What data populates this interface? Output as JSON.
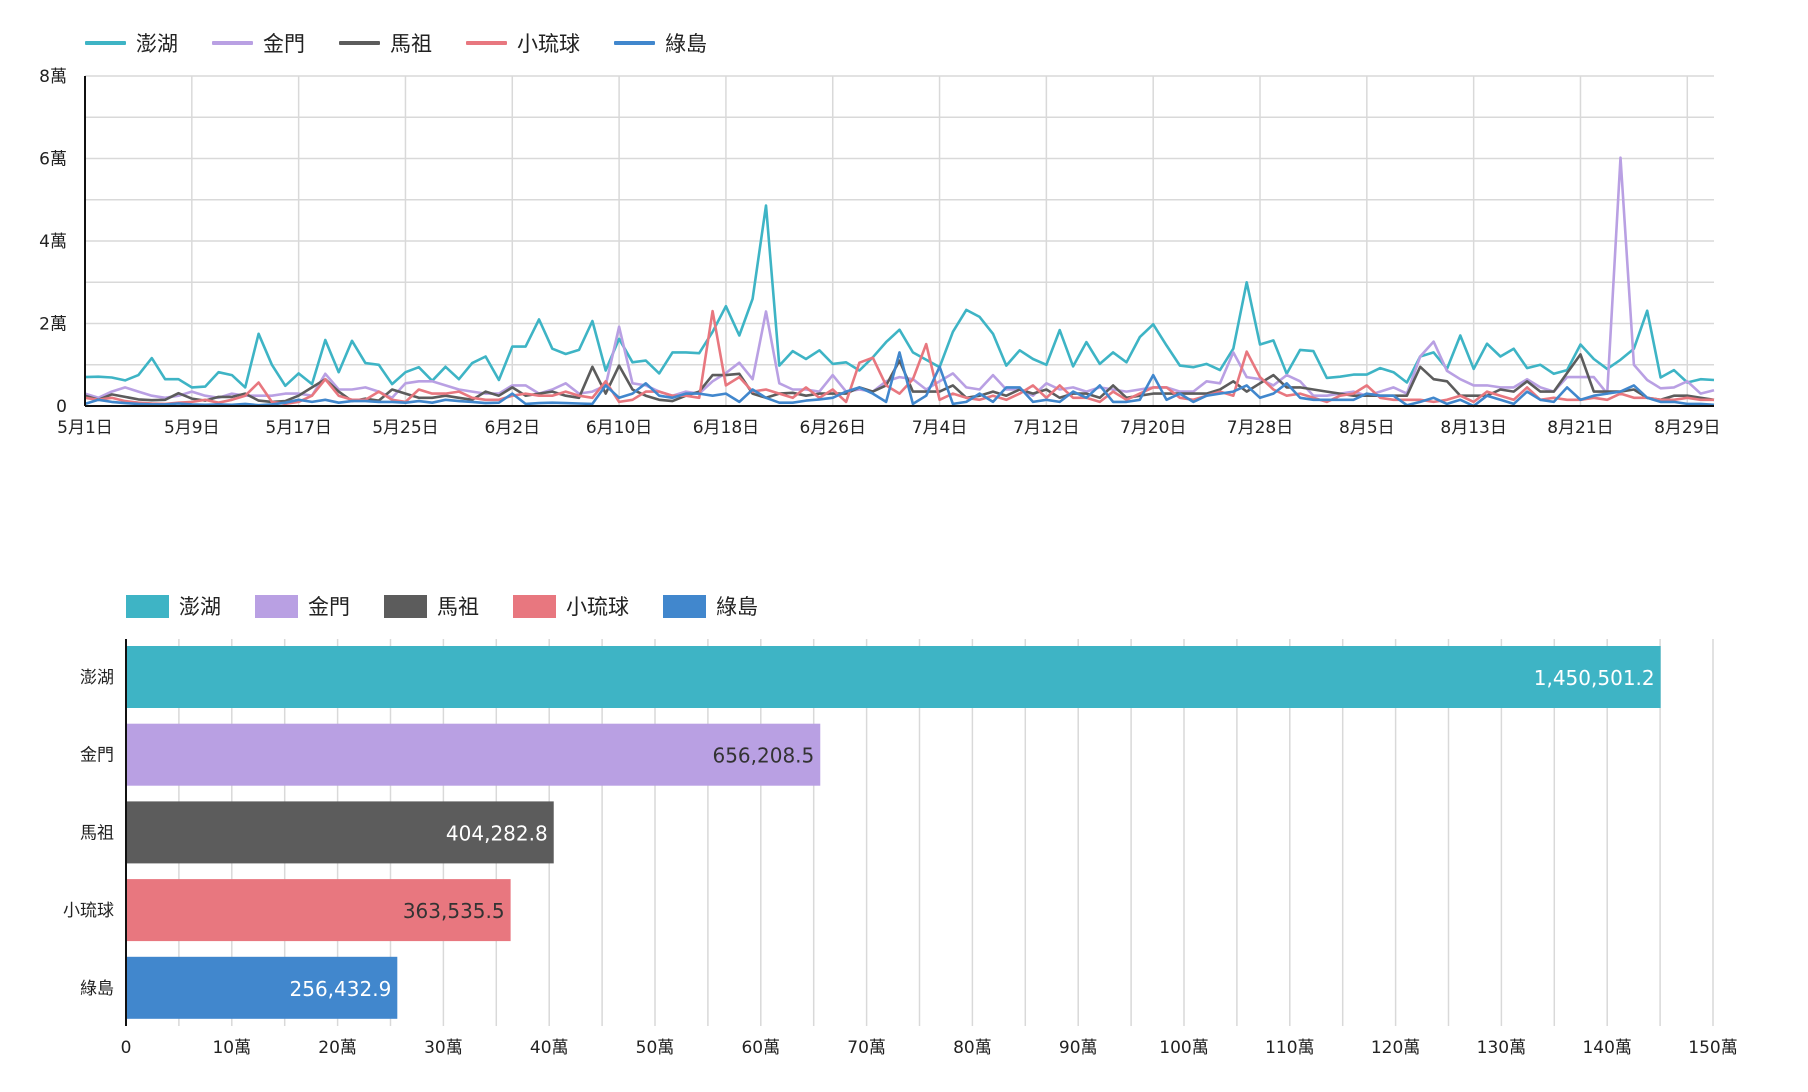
{
  "chart_data": [
    {
      "type": "line",
      "title": "",
      "x_start": "5月1日",
      "x_ticks": [
        "5月1日",
        "5月9日",
        "5月17日",
        "5月25日",
        "6月2日",
        "6月10日",
        "6月18日",
        "6月26日",
        "7月4日",
        "7月12日",
        "7月20日",
        "7月28日",
        "8月5日",
        "8月13日",
        "8月21日",
        "8月29日"
      ],
      "x_tick_every_days": 8,
      "num_days": 123,
      "y_ticks": [
        "0",
        "2萬",
        "4萬",
        "6萬",
        "8萬"
      ],
      "y_tick_values": [
        0,
        20000,
        40000,
        60000,
        80000
      ],
      "ylim": [
        0,
        80000
      ],
      "grid": true,
      "legend": "top-left",
      "series": [
        {
          "name": "澎湖",
          "color": "#3eb4c5",
          "values": [
            7000,
            7100,
            6900,
            6200,
            7500,
            11600,
            6500,
            6500,
            4500,
            4700,
            8200,
            7500,
            4500,
            17500,
            10000,
            4900,
            7900,
            5300,
            16000,
            8200,
            15800,
            10400,
            10000,
            5300,
            8200,
            9400,
            6100,
            9500,
            6500,
            10400,
            12000,
            6300,
            14400,
            14400,
            21000,
            13900,
            12600,
            13600,
            20600,
            8600,
            16300,
            10600,
            11000,
            7900,
            13000,
            13000,
            12800,
            18000,
            24200,
            17100,
            26000,
            48600,
            9800,
            13300,
            11400,
            13500,
            10200,
            10600,
            8600,
            11800,
            15500,
            18500,
            13000,
            11200,
            9400,
            18000,
            23300,
            21600,
            17500,
            9800,
            13500,
            11400,
            10000,
            18400,
            9600,
            15500,
            10200,
            13000,
            10600,
            16700,
            19800,
            14700,
            9800,
            9400,
            10200,
            8700,
            13900,
            30000,
            14900,
            15900,
            7800,
            13600,
            13300,
            6800,
            7100,
            7600,
            7600,
            9200,
            8200,
            5700,
            12000,
            13000,
            9000,
            17100,
            9000,
            15100,
            12000,
            13900,
            9200,
            10000,
            7800,
            8700,
            14900,
            11400,
            9000,
            11200,
            13900,
            23100,
            6900,
            8700,
            5700,
            6500,
            6300
          ]
        },
        {
          "name": "金門",
          "color": "#b9a0e3",
          "values": [
            3000,
            2000,
            3500,
            4500,
            3500,
            2500,
            2000,
            2500,
            3500,
            2500,
            2000,
            3000,
            2500,
            2500,
            2500,
            3000,
            3000,
            2500,
            7800,
            4000,
            4000,
            4500,
            3500,
            2000,
            5500,
            6000,
            6000,
            5000,
            4000,
            3500,
            3000,
            3000,
            5000,
            5000,
            3000,
            4000,
            5500,
            3000,
            3500,
            5000,
            19200,
            5500,
            5000,
            3500,
            2500,
            3500,
            3000,
            6000,
            8000,
            10500,
            6500,
            22900,
            5500,
            4000,
            4000,
            3500,
            7500,
            3500,
            4000,
            3500,
            6000,
            7000,
            6500,
            4000,
            6000,
            7900,
            4500,
            4000,
            7500,
            4000,
            4000,
            2500,
            5500,
            4000,
            4500,
            3500,
            4500,
            4000,
            3500,
            4000,
            4500,
            4500,
            3500,
            3500,
            6000,
            5500,
            13000,
            7000,
            6500,
            5000,
            7500,
            6000,
            2500,
            2500,
            3000,
            3500,
            2500,
            3500,
            4500,
            3000,
            12000,
            15600,
            8500,
            6500,
            5000,
            5000,
            4500,
            4500,
            6500,
            4500,
            3500,
            7000,
            7000,
            7000,
            3000,
            60200,
            10000,
            6300,
            4300,
            4500,
            6000,
            3000,
            3800
          ]
        },
        {
          "name": "馬祖",
          "color": "#5c5c5c",
          "values": [
            2500,
            1500,
            2800,
            2200,
            1600,
            1400,
            1500,
            3100,
            1800,
            1300,
            2200,
            2200,
            3000,
            1300,
            1000,
            1200,
            2500,
            4500,
            6500,
            3500,
            1200,
            1800,
            1300,
            4000,
            3000,
            2000,
            2000,
            2500,
            2000,
            1500,
            3500,
            2500,
            4500,
            2500,
            3000,
            3500,
            2500,
            2000,
            9500,
            3000,
            9800,
            4000,
            2500,
            1500,
            1200,
            2500,
            3500,
            7500,
            7500,
            7800,
            3000,
            2000,
            3000,
            3200,
            2500,
            3000,
            3000,
            3000,
            4500,
            3500,
            5000,
            11000,
            3500,
            3500,
            3500,
            5000,
            2000,
            2500,
            3500,
            2500,
            4000,
            3000,
            4000,
            2000,
            3000,
            3000,
            2000,
            5000,
            2000,
            2500,
            3000,
            3000,
            3000,
            3000,
            3000,
            4000,
            6000,
            3500,
            5500,
            7500,
            4500,
            4500,
            4000,
            3500,
            3000,
            2500,
            2500,
            2500,
            2500,
            2500,
            9500,
            6500,
            6000,
            2500,
            2500,
            2500,
            4000,
            3500,
            6000,
            3500,
            3500,
            8000,
            12500,
            3500,
            3500,
            3500,
            4000,
            2000,
            1500,
            2500,
            2500,
            2000,
            1500
          ]
        },
        {
          "name": "小琉球",
          "color": "#e8777f",
          "values": [
            2000,
            1500,
            2000,
            1200,
            800,
            600,
            500,
            800,
            1000,
            1500,
            800,
            1500,
            2500,
            5700,
            1000,
            500,
            1000,
            2500,
            6500,
            2500,
            1500,
            1500,
            3500,
            1500,
            1000,
            4000,
            3000,
            3000,
            3500,
            2000,
            1500,
            1500,
            2500,
            3000,
            2500,
            2500,
            3500,
            2500,
            2000,
            6000,
            1000,
            1500,
            3500,
            3500,
            2500,
            2500,
            2000,
            23000,
            5000,
            7000,
            3500,
            4000,
            3000,
            2000,
            4500,
            2000,
            4000,
            1000,
            10500,
            11700,
            5000,
            3000,
            6500,
            15000,
            1500,
            3000,
            2000,
            1500,
            2500,
            1500,
            3000,
            5000,
            2000,
            5000,
            2000,
            2000,
            1000,
            3500,
            1500,
            3000,
            4500,
            4500,
            2000,
            1500,
            2500,
            3500,
            2500,
            13200,
            7000,
            4000,
            2500,
            3000,
            2000,
            1000,
            2500,
            3000,
            5000,
            2000,
            1500,
            1500,
            1500,
            1000,
            1500,
            2500,
            1000,
            3500,
            2500,
            1500,
            4500,
            1500,
            2000,
            1500,
            1500,
            2000,
            1500,
            3000,
            2000,
            2000,
            1500,
            1500,
            2000,
            1500,
            1500
          ]
        },
        {
          "name": "綠島",
          "color": "#4187cd",
          "values": [
            500,
            1500,
            1000,
            700,
            500,
            400,
            400,
            600,
            400,
            300,
            400,
            300,
            500,
            200,
            400,
            800,
            1500,
            1000,
            1500,
            800,
            1200,
            1200,
            1000,
            1000,
            800,
            1200,
            800,
            1500,
            1200,
            1000,
            700,
            800,
            3000,
            500,
            700,
            800,
            700,
            600,
            500,
            5000,
            2000,
            3000,
            5500,
            2500,
            2000,
            3000,
            3000,
            2500,
            3000,
            1000,
            4000,
            2000,
            800,
            800,
            1300,
            1600,
            2000,
            3500,
            4500,
            3000,
            1000,
            13000,
            500,
            2500,
            9500,
            500,
            1000,
            3000,
            1000,
            4500,
            4500,
            1000,
            1500,
            1000,
            3500,
            2000,
            5000,
            1000,
            1000,
            1500,
            7500,
            1500,
            3000,
            1000,
            2500,
            3000,
            3500,
            5000,
            2000,
            3000,
            5500,
            2000,
            1500,
            1500,
            1500,
            1500,
            3000,
            2500,
            2500,
            200,
            1000,
            2000,
            500,
            1500,
            0,
            2500,
            1500,
            500,
            3500,
            1500,
            1000,
            4500,
            1500,
            2500,
            3000,
            3500,
            5000,
            2000,
            1000,
            1000,
            500,
            500,
            300
          ]
        }
      ]
    },
    {
      "type": "bar",
      "orientation": "horizontal",
      "categories": [
        "澎湖",
        "金門",
        "馬祖",
        "小琉球",
        "綠島"
      ],
      "values": [
        1450501.2,
        656208.5,
        404282.8,
        363535.5,
        256432.9
      ],
      "value_labels": [
        "1,450,501.2",
        "656,208.5",
        "404,282.8",
        "363,535.5",
        "256,432.9"
      ],
      "colors": [
        "#3eb4c5",
        "#b9a0e3",
        "#5c5c5c",
        "#e8777f",
        "#4187cd"
      ],
      "label_colors": [
        "#ffffff",
        "#333333",
        "#ffffff",
        "#333333",
        "#ffffff"
      ],
      "x_ticks": [
        "0",
        "10萬",
        "20萬",
        "30萬",
        "40萬",
        "50萬",
        "60萬",
        "70萬",
        "80萬",
        "90萬",
        "100萬",
        "110萬",
        "120萬",
        "130萬",
        "140萬",
        "150萬"
      ],
      "xlim": [
        0,
        1500000
      ],
      "grid": true,
      "legend": "top-left"
    }
  ]
}
